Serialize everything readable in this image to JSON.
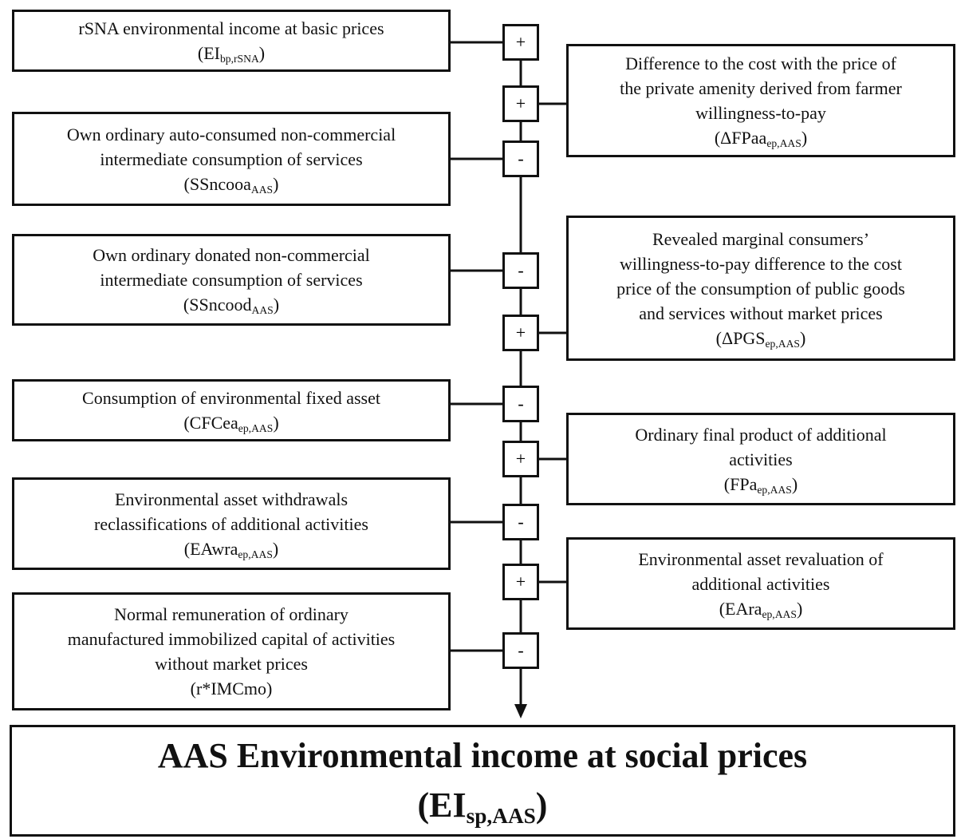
{
  "left_boxes": [
    {
      "lines": [
        "rSNA environmental income at basic prices"
      ],
      "symbol": {
        "base": "(EI",
        "sub": "bp,rSNA",
        "end": ")"
      },
      "sign": "+"
    },
    {
      "lines": [
        "Own ordinary auto-consumed non-commercial",
        "intermediate consumption of services"
      ],
      "symbol": {
        "base": "(SSncooa",
        "sub": "AAS",
        "end": ")"
      },
      "sign": "-"
    },
    {
      "lines": [
        "Own ordinary donated non-commercial",
        "intermediate consumption of services"
      ],
      "symbol": {
        "base": "(SSncood",
        "sub": "AAS",
        "end": ")"
      },
      "sign": "-"
    },
    {
      "lines": [
        "Consumption of environmental fixed asset"
      ],
      "symbol": {
        "base": "(CFCea",
        "sub": "ep,AAS",
        "end": ")"
      },
      "sign": "-"
    },
    {
      "lines": [
        "Environmental asset withdrawals",
        "reclassifications of additional activities"
      ],
      "symbol": {
        "base": "(EAwra",
        "sub": "ep,AAS",
        "end": ")"
      },
      "sign": "-"
    },
    {
      "lines": [
        "Normal remuneration of ordinary",
        "manufactured immobilized capital of activities",
        "without market prices"
      ],
      "symbol": {
        "base": "(r*IMCmo)"
      },
      "sign": "-"
    }
  ],
  "right_boxes": [
    {
      "lines": [
        "Difference to the cost with the price of",
        "the private amenity derived from farmer",
        "willingness-to-pay"
      ],
      "symbol": {
        "base": "(ΔFPaa",
        "sub": "ep,AAS",
        "end": ")"
      },
      "sign": "+"
    },
    {
      "lines": [
        "Revealed marginal consumers’",
        "willingness-to-pay difference to the cost",
        "price of the consumption of public goods",
        "and services without market prices"
      ],
      "symbol": {
        "base": "(ΔPGS",
        "sub": "ep,AAS",
        "end": ")"
      },
      "sign": "+"
    },
    {
      "lines": [
        "Ordinary final product of additional",
        "activities"
      ],
      "symbol": {
        "base": "(FPa",
        "sub": "ep,AAS",
        "end": ")"
      },
      "sign": "+"
    },
    {
      "lines": [
        "Environmental asset revaluation of",
        "additional activities"
      ],
      "symbol": {
        "base": "(EAra",
        "sub": "ep,AAS",
        "end": ")"
      },
      "sign": "+"
    }
  ],
  "result": {
    "title": "AAS Environmental income at social prices",
    "symbol": {
      "base": "(EI",
      "sub": "sp,AAS",
      "end": ")"
    }
  }
}
